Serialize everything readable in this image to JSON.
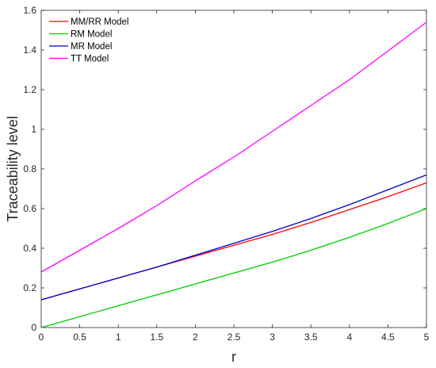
{
  "chart_data": {
    "type": "line",
    "xlabel": "r",
    "ylabel": "Traceability level",
    "xlim": [
      0,
      5
    ],
    "ylim": [
      0,
      1.6
    ],
    "xticks": [
      0,
      0.5,
      1,
      1.5,
      2,
      2.5,
      3,
      3.5,
      4,
      4.5,
      5
    ],
    "xtick_labels": [
      "0",
      "0.5",
      "1",
      "1.5",
      "2",
      "2.5",
      "3",
      "3.5",
      "4",
      "4.5",
      "5"
    ],
    "yticks": [
      0,
      0.2,
      0.4,
      0.6,
      0.8,
      1,
      1.2,
      1.4,
      1.6
    ],
    "ytick_labels": [
      "0",
      "0.2",
      "0.4",
      "0.6",
      "0.8",
      "1",
      "1.2",
      "1.4",
      "1.6"
    ],
    "grid": false,
    "legend_position": "top-left",
    "x": [
      0,
      0.5,
      1,
      1.5,
      2,
      2.5,
      3,
      3.5,
      4,
      4.5,
      5
    ],
    "series": [
      {
        "name": "MM/RR Model",
        "color": "#ff0000",
        "values": [
          0.14,
          0.195,
          0.25,
          0.305,
          0.36,
          0.415,
          0.47,
          0.53,
          0.595,
          0.66,
          0.73
        ]
      },
      {
        "name": "RM Model",
        "color": "#00cc00",
        "values": [
          0,
          0.055,
          0.11,
          0.165,
          0.22,
          0.275,
          0.33,
          0.39,
          0.455,
          0.525,
          0.6
        ]
      },
      {
        "name": "MR Model",
        "color": "#0000cc",
        "values": [
          0.14,
          0.195,
          0.25,
          0.305,
          0.365,
          0.425,
          0.485,
          0.55,
          0.62,
          0.695,
          0.77
        ]
      },
      {
        "name": "TT Model",
        "color": "#ff00ff",
        "values": [
          0.28,
          0.39,
          0.5,
          0.615,
          0.74,
          0.86,
          0.99,
          1.12,
          1.25,
          1.395,
          1.54
        ]
      }
    ]
  }
}
